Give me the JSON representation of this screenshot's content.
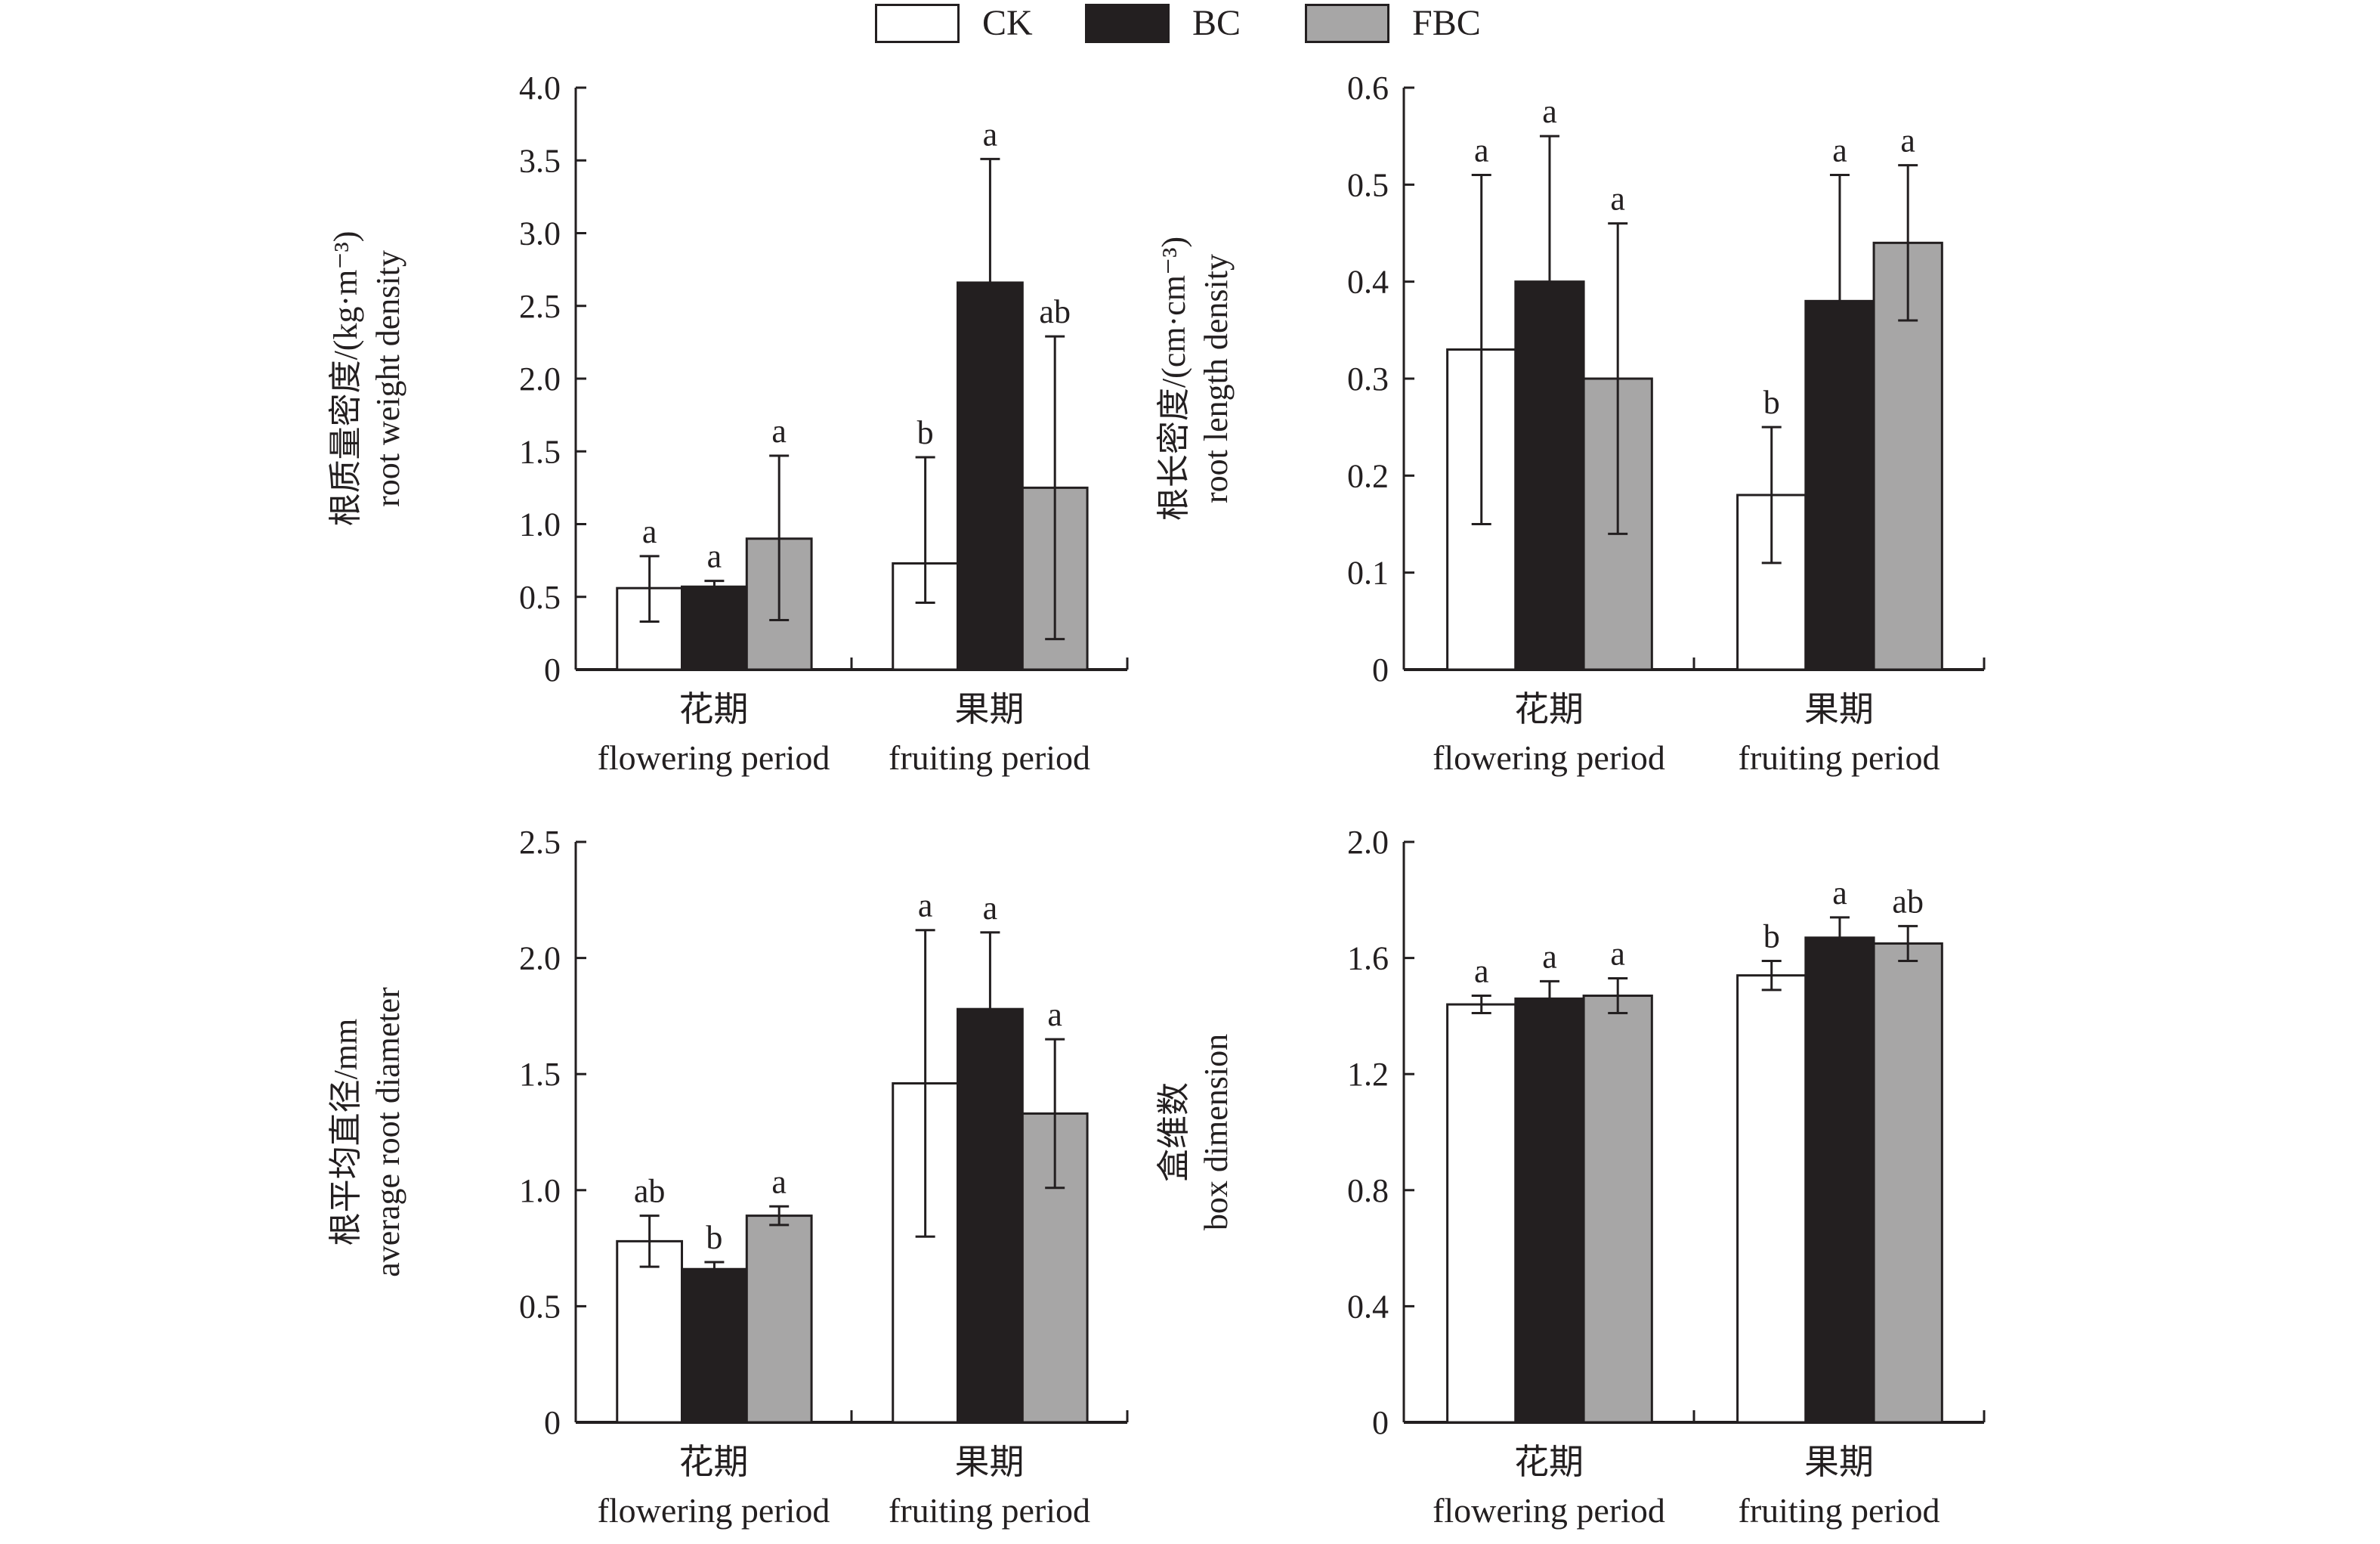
{
  "legend": [
    {
      "name": "CK",
      "color": "#ffffff"
    },
    {
      "name": "BC",
      "color": "#231f20"
    },
    {
      "name": "FBC",
      "color": "#a7a6a6"
    }
  ],
  "chart_data": [
    {
      "type": "bar",
      "id": "root-weight-density",
      "title": "",
      "ylabel_cn": "根质量密度/(kg·m⁻³)",
      "ylabel_en": "root weight density",
      "ylim": [
        0,
        4.0
      ],
      "yticks": [
        "0",
        "0.5",
        "1.0",
        "1.5",
        "2.0",
        "2.5",
        "3.0",
        "3.5",
        "4.0"
      ],
      "ytick_values": [
        0,
        0.5,
        1.0,
        1.5,
        2.0,
        2.5,
        3.0,
        3.5,
        4.0
      ],
      "categories_cn": [
        "花期",
        "果期"
      ],
      "categories": [
        "flowering period",
        "fruiting period"
      ],
      "series": [
        {
          "name": "CK",
          "values": [
            0.56,
            0.73
          ],
          "err_low": [
            0.33,
            0.46
          ],
          "err_high": [
            0.78,
            1.46
          ],
          "sig": [
            "a",
            "b"
          ]
        },
        {
          "name": "BC",
          "values": [
            0.57,
            2.66
          ],
          "err_low": [
            0.57,
            2.66
          ],
          "err_high": [
            0.61,
            3.51
          ],
          "sig": [
            "a",
            "a"
          ]
        },
        {
          "name": "FBC",
          "values": [
            0.9,
            1.25
          ],
          "err_low": [
            0.34,
            0.21
          ],
          "err_high": [
            1.47,
            2.29
          ],
          "sig": [
            "a",
            "ab"
          ]
        }
      ]
    },
    {
      "type": "bar",
      "id": "root-length-density",
      "title": "",
      "ylabel_cn": "根长密度/(cm·cm⁻³)",
      "ylabel_en": "root length density",
      "ylim": [
        0,
        0.6
      ],
      "yticks": [
        "0",
        "0.1",
        "0.2",
        "0.3",
        "0.4",
        "0.5",
        "0.6"
      ],
      "ytick_values": [
        0,
        0.1,
        0.2,
        0.3,
        0.4,
        0.5,
        0.6
      ],
      "categories_cn": [
        "花期",
        "果期"
      ],
      "categories": [
        "flowering period",
        "fruiting period"
      ],
      "series": [
        {
          "name": "CK",
          "values": [
            0.33,
            0.18
          ],
          "err_low": [
            0.15,
            0.11
          ],
          "err_high": [
            0.51,
            0.25
          ],
          "sig": [
            "a",
            "b"
          ]
        },
        {
          "name": "BC",
          "values": [
            0.4,
            0.38
          ],
          "err_low": [
            0.4,
            0.38
          ],
          "err_high": [
            0.55,
            0.51
          ],
          "sig": [
            "a",
            "a"
          ]
        },
        {
          "name": "FBC",
          "values": [
            0.3,
            0.44
          ],
          "err_low": [
            0.14,
            0.36
          ],
          "err_high": [
            0.46,
            0.52
          ],
          "sig": [
            "a",
            "a"
          ]
        }
      ]
    },
    {
      "type": "bar",
      "id": "average-root-diameter",
      "title": "",
      "ylabel_cn": "根平均直径/mm",
      "ylabel_en": "average root diameter",
      "ylim": [
        0,
        2.5
      ],
      "yticks": [
        "0",
        "0.5",
        "1.0",
        "1.5",
        "2.0",
        "2.5"
      ],
      "ytick_values": [
        0,
        0.5,
        1.0,
        1.5,
        2.0,
        2.5
      ],
      "categories_cn": [
        "花期",
        "果期"
      ],
      "categories": [
        "flowering period",
        "fruiting period"
      ],
      "series": [
        {
          "name": "CK",
          "values": [
            0.78,
            1.46
          ],
          "err_low": [
            0.67,
            0.8
          ],
          "err_high": [
            0.89,
            2.12
          ],
          "sig": [
            "ab",
            "a"
          ]
        },
        {
          "name": "BC",
          "values": [
            0.66,
            1.78
          ],
          "err_low": [
            0.66,
            1.78
          ],
          "err_high": [
            0.69,
            2.11
          ],
          "sig": [
            "b",
            "a"
          ]
        },
        {
          "name": "FBC",
          "values": [
            0.89,
            1.33
          ],
          "err_low": [
            0.85,
            1.01
          ],
          "err_high": [
            0.93,
            1.65
          ],
          "sig": [
            "a",
            "a"
          ]
        }
      ]
    },
    {
      "type": "bar",
      "id": "box-dimension",
      "title": "",
      "ylabel_cn": "盒维数",
      "ylabel_en": "box dimension",
      "ylim": [
        0,
        2.0
      ],
      "yticks": [
        "0",
        "0.4",
        "0.8",
        "1.2",
        "1.6",
        "2.0"
      ],
      "ytick_values": [
        0,
        0.4,
        0.8,
        1.2,
        1.6,
        2.0
      ],
      "categories_cn": [
        "花期",
        "果期"
      ],
      "categories": [
        "flowering period",
        "fruiting period"
      ],
      "series": [
        {
          "name": "CK",
          "values": [
            1.44,
            1.54
          ],
          "err_low": [
            1.41,
            1.49
          ],
          "err_high": [
            1.47,
            1.59
          ],
          "sig": [
            "a",
            "b"
          ]
        },
        {
          "name": "BC",
          "values": [
            1.46,
            1.67
          ],
          "err_low": [
            1.46,
            1.67
          ],
          "err_high": [
            1.52,
            1.74
          ],
          "sig": [
            "a",
            "a"
          ]
        },
        {
          "name": "FBC",
          "values": [
            1.47,
            1.65
          ],
          "err_low": [
            1.41,
            1.59
          ],
          "err_high": [
            1.53,
            1.71
          ],
          "sig": [
            "a",
            "ab"
          ]
        }
      ]
    }
  ]
}
